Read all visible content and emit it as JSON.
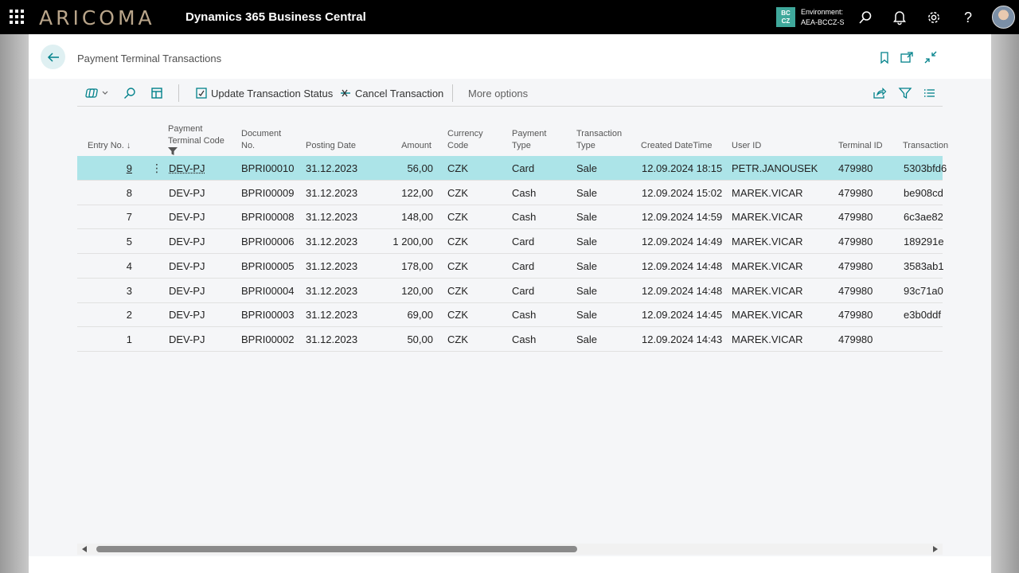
{
  "app": {
    "brand": "ARICOMA",
    "product": "Dynamics 365 Business Central",
    "environment_badge": [
      "BC",
      "CZ"
    ],
    "environment_label": "Environment:",
    "environment_name": "AEA-BCCZ-S"
  },
  "page": {
    "title": "Payment Terminal Transactions"
  },
  "actions": {
    "update_status": "Update Transaction Status",
    "cancel_transaction": "Cancel Transaction",
    "more_options": "More options"
  },
  "columns": {
    "entry_no": "Entry No.",
    "terminal_code": [
      "Payment",
      "Terminal Code"
    ],
    "document_no": [
      "Document",
      "No."
    ],
    "posting_date": "Posting Date",
    "amount": "Amount",
    "currency_code": [
      "Currency",
      "Code"
    ],
    "payment_type": [
      "Payment",
      "Type"
    ],
    "transaction_type": [
      "Transaction",
      "Type"
    ],
    "created": "Created DateTime",
    "user_id": "User ID",
    "terminal_id": "Terminal ID",
    "transaction": "Transaction"
  },
  "rows": [
    {
      "entry": "9",
      "code": "DEV-PJ",
      "doc": "BPRI00010",
      "date": "31.12.2023",
      "amount": "56,00",
      "cur": "CZK",
      "ptype": "Card",
      "ttype": "Sale",
      "created": "12.09.2024 18:15",
      "user": "PETR.JANOUSEK",
      "tid": "479980",
      "trx": "5303bfd6"
    },
    {
      "entry": "8",
      "code": "DEV-PJ",
      "doc": "BPRI00009",
      "date": "31.12.2023",
      "amount": "122,00",
      "cur": "CZK",
      "ptype": "Cash",
      "ttype": "Sale",
      "created": "12.09.2024 15:02",
      "user": "MAREK.VICAR",
      "tid": "479980",
      "trx": "be908cd"
    },
    {
      "entry": "7",
      "code": "DEV-PJ",
      "doc": "BPRI00008",
      "date": "31.12.2023",
      "amount": "148,00",
      "cur": "CZK",
      "ptype": "Cash",
      "ttype": "Sale",
      "created": "12.09.2024 14:59",
      "user": "MAREK.VICAR",
      "tid": "479980",
      "trx": "6c3ae82"
    },
    {
      "entry": "5",
      "code": "DEV-PJ",
      "doc": "BPRI00006",
      "date": "31.12.2023",
      "amount": "1 200,00",
      "cur": "CZK",
      "ptype": "Card",
      "ttype": "Sale",
      "created": "12.09.2024 14:49",
      "user": "MAREK.VICAR",
      "tid": "479980",
      "trx": "189291e"
    },
    {
      "entry": "4",
      "code": "DEV-PJ",
      "doc": "BPRI00005",
      "date": "31.12.2023",
      "amount": "178,00",
      "cur": "CZK",
      "ptype": "Card",
      "ttype": "Sale",
      "created": "12.09.2024 14:48",
      "user": "MAREK.VICAR",
      "tid": "479980",
      "trx": "3583ab1"
    },
    {
      "entry": "3",
      "code": "DEV-PJ",
      "doc": "BPRI00004",
      "date": "31.12.2023",
      "amount": "120,00",
      "cur": "CZK",
      "ptype": "Card",
      "ttype": "Sale",
      "created": "12.09.2024 14:48",
      "user": "MAREK.VICAR",
      "tid": "479980",
      "trx": "93c71a0"
    },
    {
      "entry": "2",
      "code": "DEV-PJ",
      "doc": "BPRI00003",
      "date": "31.12.2023",
      "amount": "69,00",
      "cur": "CZK",
      "ptype": "Cash",
      "ttype": "Sale",
      "created": "12.09.2024 14:45",
      "user": "MAREK.VICAR",
      "tid": "479980",
      "trx": "e3b0ddf"
    },
    {
      "entry": "1",
      "code": "DEV-PJ",
      "doc": "BPRI00002",
      "date": "31.12.2023",
      "amount": "50,00",
      "cur": "CZK",
      "ptype": "Cash",
      "ttype": "Sale",
      "created": "12.09.2024 14:43",
      "user": "MAREK.VICAR",
      "tid": "479980",
      "trx": ""
    }
  ],
  "icons": {
    "waffle": "waffle-icon",
    "search": "search-icon",
    "bell": "bell-icon",
    "settings": "gear-icon",
    "help": "help-icon",
    "back": "arrow-left-icon",
    "bookmark": "bookmark-icon",
    "open_new": "open-new-window-icon",
    "collapse": "collapse-icon",
    "share": "share-icon",
    "filter": "filter-icon",
    "list": "list-icon"
  },
  "colors": {
    "selected_row": "#ace4e8",
    "accent": "#00818a",
    "env_badge": "#3fa89b"
  }
}
